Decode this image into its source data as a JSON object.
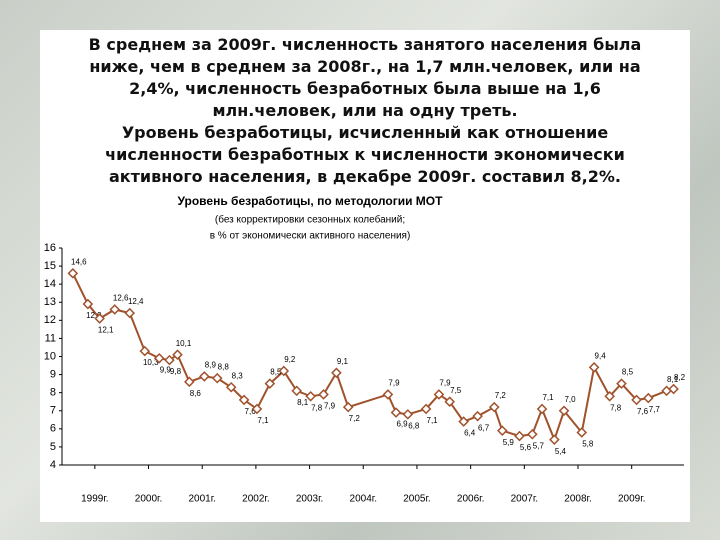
{
  "header": {
    "lines": [
      "В среднем за 2009г. численность занятого населения была",
      "ниже, чем в среднем за 2008г., на 1,7 млн.человек, или на",
      "2,4%, численность безработных была выше на 1,6",
      "млн.человек, или на одну треть.",
      "Уровень безработицы, исчисленный как отношение",
      "численности безработных к численности экономически",
      "активного населения, в декабре 2009г. составил 8,2%."
    ]
  },
  "chart_data": {
    "type": "line",
    "title": "Уровень безработицы, по методологии МОТ",
    "subtitle": [
      "(без корректировки сезонных колебаний;",
      "в % от экономически активного населения)"
    ],
    "xlim": [
      1999,
      2010.4
    ],
    "xticks": [
      {
        "value": 1999.5,
        "label": "1999г."
      },
      {
        "value": 2000.5,
        "label": "2000г."
      },
      {
        "value": 2001.5,
        "label": "2001г."
      },
      {
        "value": 2002.5,
        "label": "2002г."
      },
      {
        "value": 2003.5,
        "label": "2003г."
      },
      {
        "value": 2004.5,
        "label": "2004г."
      },
      {
        "value": 2005.5,
        "label": "2005г."
      },
      {
        "value": 2006.5,
        "label": "2006г."
      },
      {
        "value": 2007.5,
        "label": "2007г."
      },
      {
        "value": 2008.5,
        "label": "2008г."
      },
      {
        "value": 2009.5,
        "label": "2009г."
      }
    ],
    "ylim": [
      4,
      16
    ],
    "yticks": [
      4,
      5,
      6,
      7,
      8,
      9,
      10,
      11,
      12,
      13,
      14,
      15,
      16
    ],
    "grid": false,
    "series": [
      {
        "name": "Уровень безработицы",
        "color": "#a0522d",
        "x": [
          1999.09,
          1999.37,
          1999.59,
          1999.87,
          2000.15,
          2000.43,
          2000.7,
          2000.89,
          2001.04,
          2001.26,
          2001.54,
          2001.78,
          2002.04,
          2002.28,
          2002.52,
          2002.76,
          2003.02,
          2003.26,
          2003.52,
          2003.76,
          2004.0,
          2004.22,
          2004.96,
          2005.11,
          2005.33,
          2005.67,
          2005.91,
          2006.11,
          2006.37,
          2006.63,
          2006.94,
          2007.09,
          2007.41,
          2007.65,
          2007.83,
          2008.06,
          2008.24,
          2008.57,
          2008.8,
          2009.09,
          2009.31,
          2009.59,
          2009.81,
          2010.15,
          2010.28
        ],
        "values": [
          14.6,
          12.9,
          12.1,
          12.6,
          12.4,
          10.3,
          9.9,
          9.8,
          10.1,
          8.6,
          8.9,
          8.8,
          8.3,
          7.6,
          7.1,
          8.5,
          9.2,
          8.1,
          7.8,
          7.9,
          9.1,
          7.2,
          7.9,
          6.9,
          6.8,
          7.1,
          7.9,
          7.5,
          6.4,
          6.7,
          7.2,
          5.9,
          5.6,
          5.7,
          7.1,
          5.4,
          7.0,
          5.8,
          9.4,
          7.8,
          8.5,
          7.6,
          7.7,
          8.1,
          8.2
        ],
        "value_labels": [
          "14,6",
          "12,9",
          "12,1",
          "12,6",
          "12,4",
          "10,3",
          "9,9",
          "9,8",
          "10,1",
          "8,6",
          "8,9",
          "8,8",
          "8,3",
          "7,6",
          "7,1",
          "8,5",
          "9,2",
          "8,1",
          "7,8",
          "7,9",
          "9,1",
          "7,2",
          "7,9",
          "6,9",
          "6,8",
          "7,1",
          "7,9",
          "7,5",
          "6,4",
          "6,7",
          "7,2",
          "5,9",
          "5,6",
          "5,7",
          "7,1",
          "5,4",
          "7,0",
          "5,8",
          "9,4",
          "7,8",
          "8,5",
          "7,6",
          "7,7",
          "8,1",
          "8,2"
        ]
      }
    ]
  }
}
